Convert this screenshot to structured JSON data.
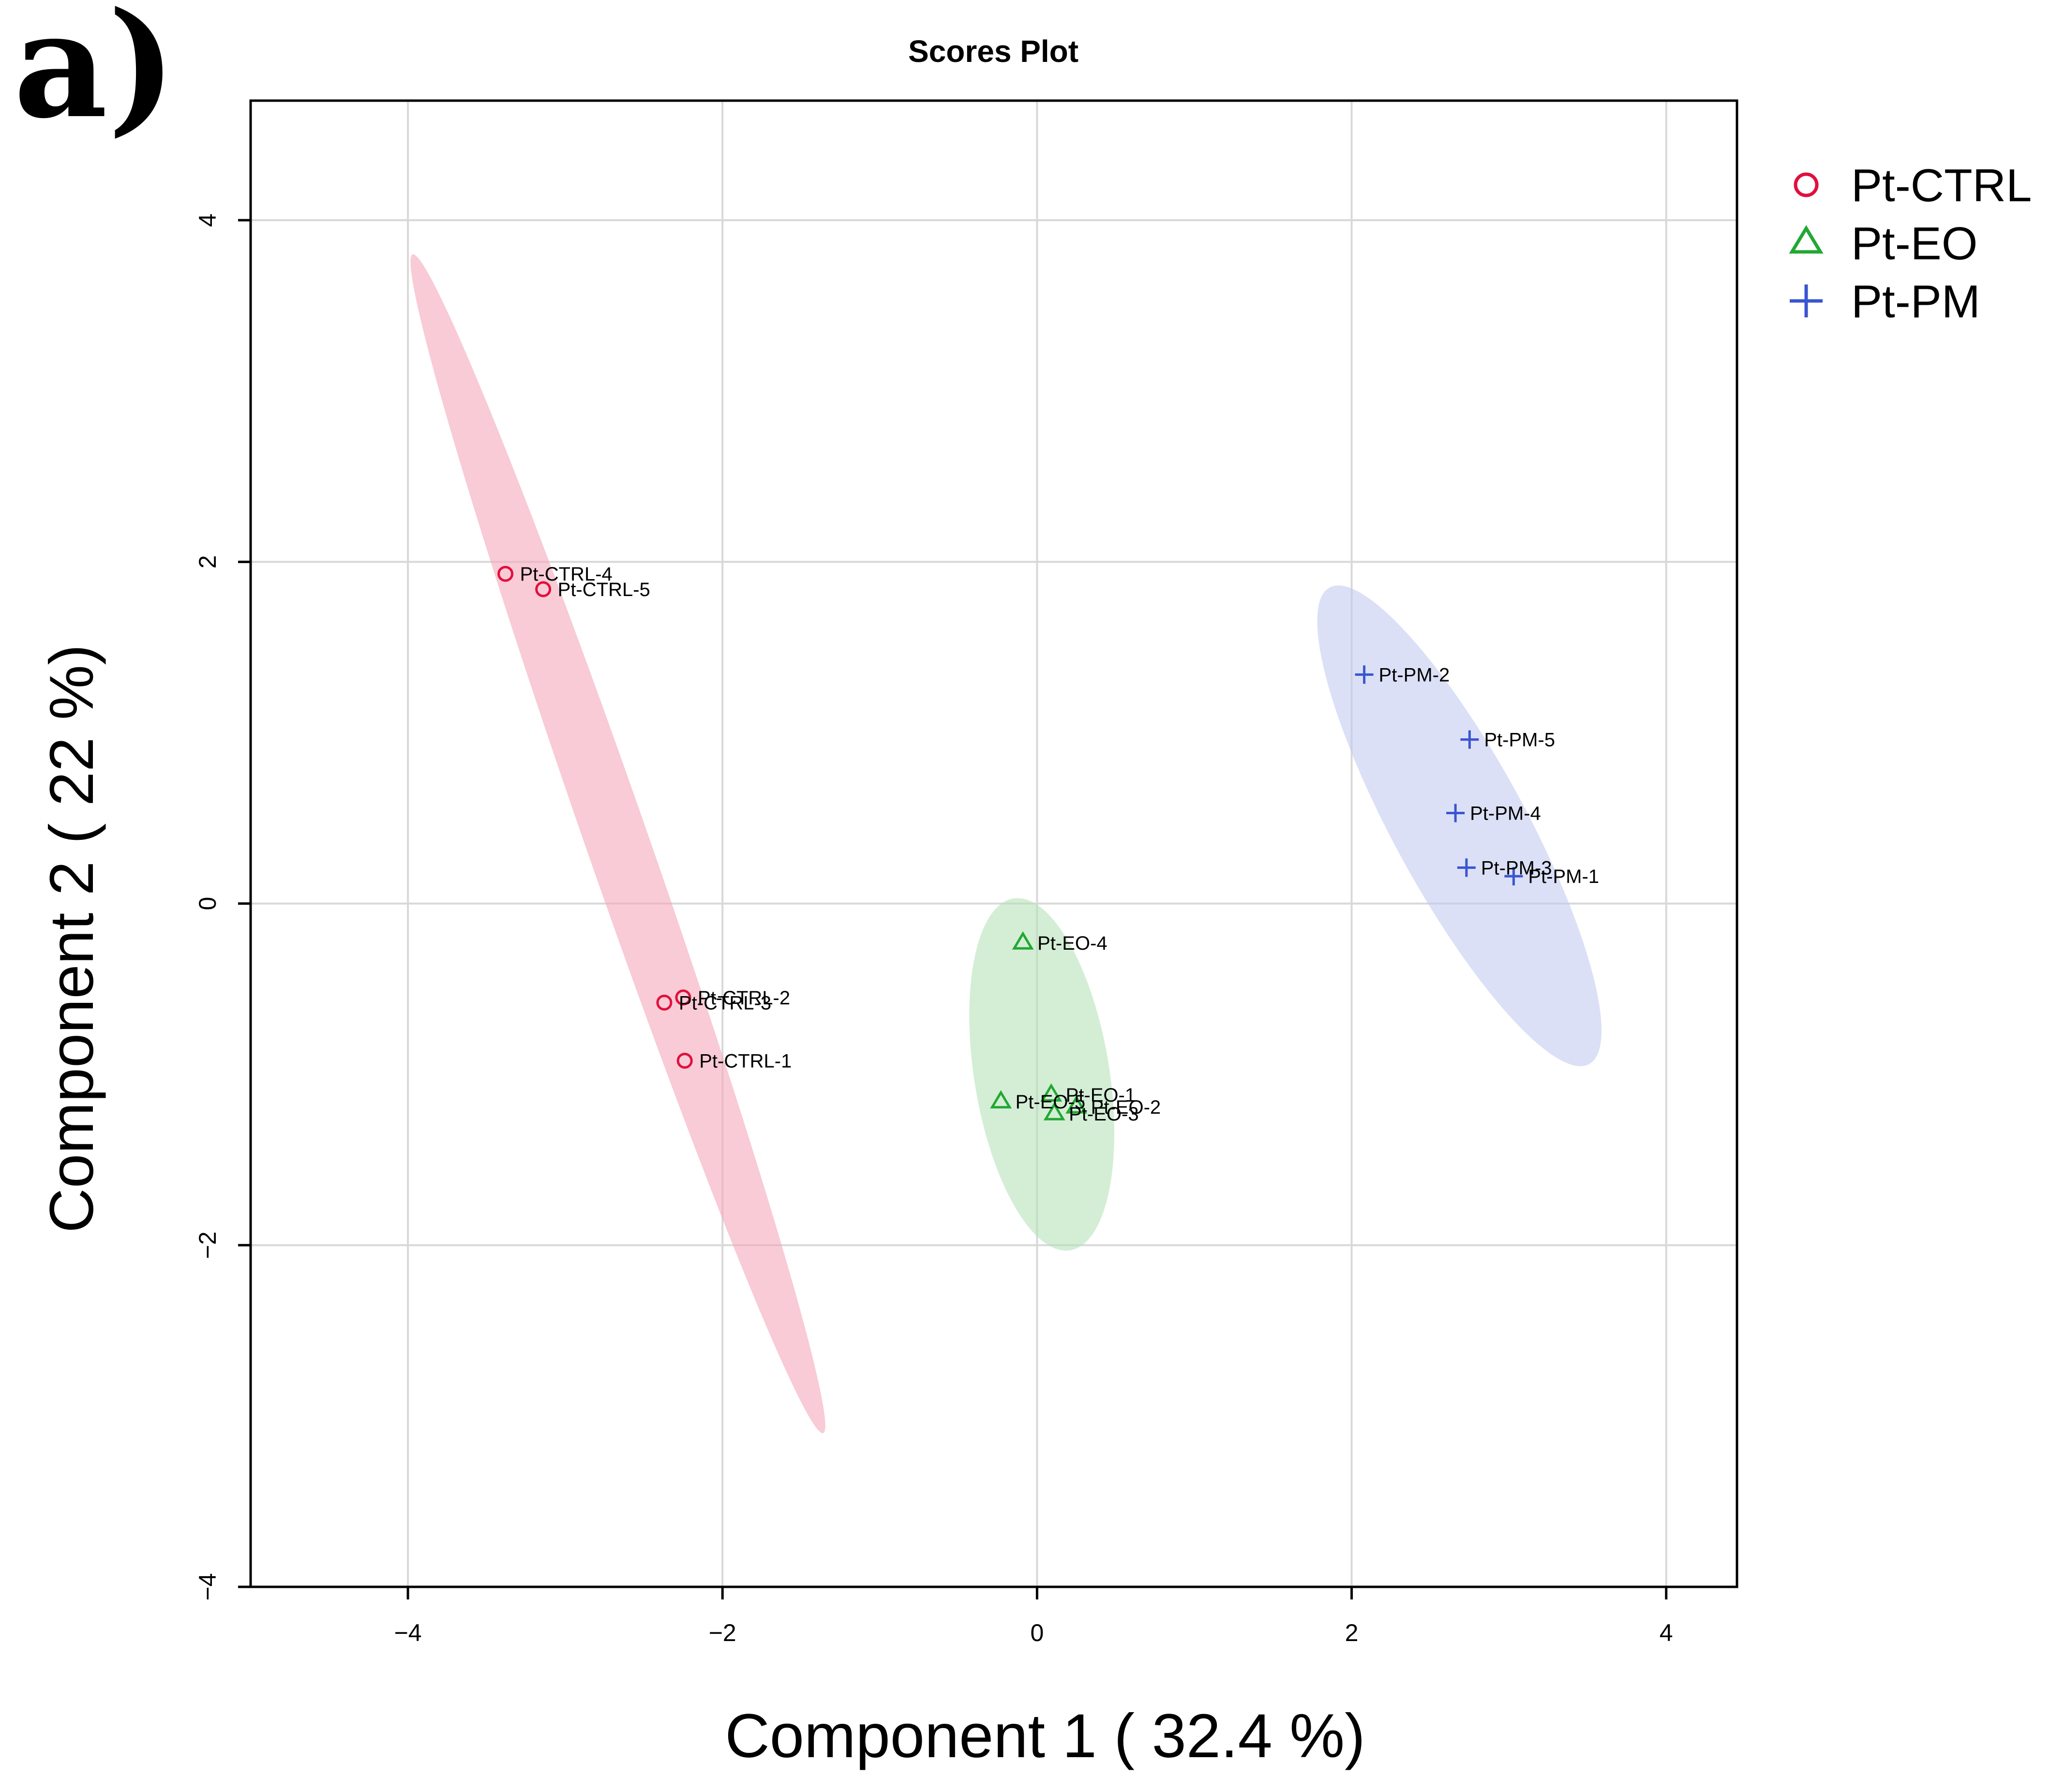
{
  "panel_label": "a)",
  "chart_data": {
    "type": "scatter",
    "title": "Scores Plot",
    "xlabel": "Component 1 ( 32.4 %)",
    "ylabel": "Component 2 ( 22 %)",
    "xlim": [
      -5,
      4.45
    ],
    "ylim": [
      -4.0,
      4.7
    ],
    "xticks": [
      -4,
      -2,
      0,
      2,
      4
    ],
    "yticks": [
      -4,
      -2,
      0,
      2,
      4
    ],
    "xtick_labels": [
      "−4",
      "−2",
      "0",
      "2",
      "4"
    ],
    "ytick_labels": [
      "−4",
      "−2",
      "0",
      "2",
      "4"
    ],
    "grid": true,
    "legend_position": "outside-top-right",
    "series": [
      {
        "name": "Pt-CTRL",
        "marker": "circle",
        "color": "#e0103c",
        "ellipse_color": "#f3a6b8",
        "points": [
          {
            "label": "Pt-CTRL-1",
            "x": -2.24,
            "y": -0.92
          },
          {
            "label": "Pt-CTRL-2",
            "x": -2.25,
            "y": -0.55
          },
          {
            "label": "Pt-CTRL-3",
            "x": -2.37,
            "y": -0.58
          },
          {
            "label": "Pt-CTRL-4",
            "x": -3.38,
            "y": 1.93
          },
          {
            "label": "Pt-CTRL-5",
            "x": -3.14,
            "y": 1.84
          }
        ],
        "ellipse": {
          "cx": -2.67,
          "cy": 0.35,
          "major_endpoints": [
            [
              -3.97,
              3.8
            ],
            [
              -1.36,
              -3.1
            ]
          ],
          "minor_half": 0.2
        }
      },
      {
        "name": "Pt-EO",
        "marker": "triangle",
        "color": "#22a833",
        "ellipse_color": "#b5e2b8",
        "points": [
          {
            "label": "Pt-EO-1",
            "x": 0.09,
            "y": -1.12
          },
          {
            "label": "Pt-EO-2",
            "x": 0.25,
            "y": -1.19
          },
          {
            "label": "Pt-EO-3",
            "x": 0.11,
            "y": -1.23
          },
          {
            "label": "Pt-EO-4",
            "x": -0.09,
            "y": -0.23
          },
          {
            "label": "Pt-EO-5",
            "x": -0.23,
            "y": -1.16
          }
        ],
        "ellipse": {
          "cx": 0.02,
          "cy": -1.0,
          "major_endpoints": [
            [
              -0.15,
              0.03
            ],
            [
              0.21,
              -2.03
            ]
          ],
          "minor_half": 0.43
        }
      },
      {
        "name": "Pt-PM",
        "marker": "plus",
        "color": "#3a55d0",
        "ellipse_color": "#c3caf0",
        "points": [
          {
            "label": "Pt-PM-1",
            "x": 3.03,
            "y": 0.16
          },
          {
            "label": "Pt-PM-2",
            "x": 2.08,
            "y": 1.34
          },
          {
            "label": "Pt-PM-3",
            "x": 2.73,
            "y": 0.21
          },
          {
            "label": "Pt-PM-4",
            "x": 2.66,
            "y": 0.53
          },
          {
            "label": "Pt-PM-5",
            "x": 2.75,
            "y": 0.96
          }
        ],
        "ellipse": {
          "cx": 2.68,
          "cy": 0.46,
          "major_endpoints": [
            [
              1.86,
              1.85
            ],
            [
              3.51,
              -0.94
            ]
          ],
          "minor_half": 0.42
        }
      }
    ]
  }
}
